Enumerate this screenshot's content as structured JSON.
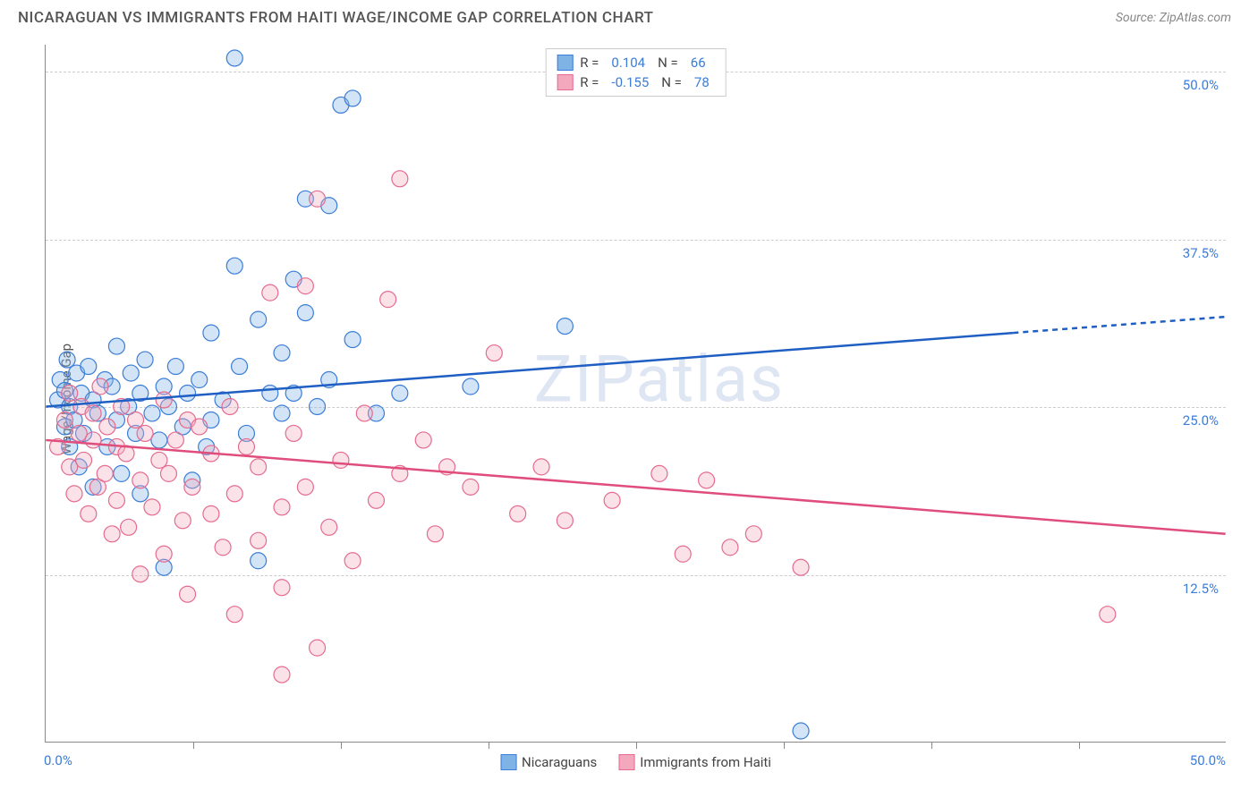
{
  "header": {
    "title": "NICARAGUAN VS IMMIGRANTS FROM HAITI WAGE/INCOME GAP CORRELATION CHART",
    "source": "Source: ZipAtlas.com"
  },
  "chart": {
    "type": "scatter",
    "ylabel": "Wage/Income Gap",
    "watermark": "ZIPatlas",
    "xlim": [
      0,
      50
    ],
    "ylim": [
      0,
      52
    ],
    "y_ticks": [
      12.5,
      25.0,
      37.5,
      50.0
    ],
    "y_tick_labels": [
      "12.5%",
      "25.0%",
      "37.5%",
      "50.0%"
    ],
    "x_axis_start_label": "0.0%",
    "x_axis_end_label": "50.0%",
    "x_tick_positions": [
      6.25,
      12.5,
      18.75,
      25.0,
      31.25,
      37.5,
      43.75
    ],
    "gridline_color": "#cccccc",
    "axis_label_color": "#3b7dd8",
    "background_color": "#ffffff",
    "point_radius": 9,
    "point_stroke_width": 1.2,
    "point_fill_opacity": 0.35,
    "trend_line_width": 2.5,
    "series": [
      {
        "name": "Nicaraguans",
        "color_fill": "#7fb2e5",
        "color_stroke": "#3b7dd8",
        "trend_color": "#1f5fc4",
        "R": "0.104",
        "N": "66",
        "trend_start": [
          0,
          25.0
        ],
        "trend_solid_end": [
          41,
          30.5
        ],
        "trend_dash_end": [
          50,
          31.7
        ],
        "points": [
          [
            0.5,
            25.5
          ],
          [
            0.6,
            27.0
          ],
          [
            0.8,
            26.2
          ],
          [
            0.8,
            23.5
          ],
          [
            0.9,
            28.5
          ],
          [
            1.0,
            25.0
          ],
          [
            1.0,
            22.0
          ],
          [
            1.2,
            24.0
          ],
          [
            1.3,
            27.5
          ],
          [
            1.4,
            20.5
          ],
          [
            1.5,
            26.0
          ],
          [
            1.6,
            23.0
          ],
          [
            1.8,
            28.0
          ],
          [
            2.0,
            25.5
          ],
          [
            2.0,
            19.0
          ],
          [
            2.2,
            24.5
          ],
          [
            2.5,
            27.0
          ],
          [
            2.6,
            22.0
          ],
          [
            2.8,
            26.5
          ],
          [
            3.0,
            24.0
          ],
          [
            3.0,
            29.5
          ],
          [
            3.2,
            20.0
          ],
          [
            3.5,
            25.0
          ],
          [
            3.6,
            27.5
          ],
          [
            3.8,
            23.0
          ],
          [
            4.0,
            26.0
          ],
          [
            4.0,
            18.5
          ],
          [
            4.2,
            28.5
          ],
          [
            4.5,
            24.5
          ],
          [
            4.8,
            22.5
          ],
          [
            5.0,
            26.5
          ],
          [
            5.0,
            13.0
          ],
          [
            5.2,
            25.0
          ],
          [
            5.5,
            28.0
          ],
          [
            5.8,
            23.5
          ],
          [
            6.0,
            26.0
          ],
          [
            6.2,
            19.5
          ],
          [
            6.5,
            27.0
          ],
          [
            7.0,
            24.0
          ],
          [
            7.0,
            30.5
          ],
          [
            7.5,
            25.5
          ],
          [
            8.0,
            35.5
          ],
          [
            8.0,
            51.0
          ],
          [
            8.2,
            28.0
          ],
          [
            8.5,
            23.0
          ],
          [
            9.0,
            31.5
          ],
          [
            9.0,
            13.5
          ],
          [
            9.5,
            26.0
          ],
          [
            10.0,
            29.0
          ],
          [
            10.0,
            24.5
          ],
          [
            10.5,
            34.5
          ],
          [
            11.0,
            40.5
          ],
          [
            11.0,
            32.0
          ],
          [
            11.5,
            25.0
          ],
          [
            12.0,
            27.0
          ],
          [
            12.0,
            40.0
          ],
          [
            12.5,
            47.5
          ],
          [
            13.0,
            48.0
          ],
          [
            13.0,
            30.0
          ],
          [
            14.0,
            24.5
          ],
          [
            15.0,
            26.0
          ],
          [
            18.0,
            26.5
          ],
          [
            22.0,
            31.0
          ],
          [
            32.0,
            0.8
          ],
          [
            10.5,
            26.0
          ],
          [
            6.8,
            22.0
          ]
        ]
      },
      {
        "name": "Immigrants from Haiti",
        "color_fill": "#f4a8bd",
        "color_stroke": "#e56b8f",
        "trend_color": "#e04d7d",
        "R": "-0.155",
        "N": "78",
        "trend_start": [
          0,
          22.5
        ],
        "trend_solid_end": [
          50,
          15.5
        ],
        "trend_dash_end": null,
        "points": [
          [
            0.5,
            22.0
          ],
          [
            0.8,
            24.0
          ],
          [
            1.0,
            20.5
          ],
          [
            1.0,
            26.0
          ],
          [
            1.2,
            18.5
          ],
          [
            1.4,
            23.0
          ],
          [
            1.5,
            25.0
          ],
          [
            1.6,
            21.0
          ],
          [
            1.8,
            17.0
          ],
          [
            2.0,
            24.5
          ],
          [
            2.0,
            22.5
          ],
          [
            2.2,
            19.0
          ],
          [
            2.3,
            26.5
          ],
          [
            2.5,
            20.0
          ],
          [
            2.6,
            23.5
          ],
          [
            2.8,
            15.5
          ],
          [
            3.0,
            22.0
          ],
          [
            3.0,
            18.0
          ],
          [
            3.2,
            25.0
          ],
          [
            3.4,
            21.5
          ],
          [
            3.5,
            16.0
          ],
          [
            3.8,
            24.0
          ],
          [
            4.0,
            19.5
          ],
          [
            4.0,
            12.5
          ],
          [
            4.2,
            23.0
          ],
          [
            4.5,
            17.5
          ],
          [
            4.8,
            21.0
          ],
          [
            5.0,
            25.5
          ],
          [
            5.0,
            14.0
          ],
          [
            5.2,
            20.0
          ],
          [
            5.5,
            22.5
          ],
          [
            5.8,
            16.5
          ],
          [
            6.0,
            24.0
          ],
          [
            6.0,
            11.0
          ],
          [
            6.2,
            19.0
          ],
          [
            6.5,
            23.5
          ],
          [
            7.0,
            17.0
          ],
          [
            7.0,
            21.5
          ],
          [
            7.5,
            14.5
          ],
          [
            7.8,
            25.0
          ],
          [
            8.0,
            18.5
          ],
          [
            8.0,
            9.5
          ],
          [
            8.5,
            22.0
          ],
          [
            9.0,
            15.0
          ],
          [
            9.0,
            20.5
          ],
          [
            9.5,
            33.5
          ],
          [
            10.0,
            17.5
          ],
          [
            10.0,
            11.5
          ],
          [
            10.5,
            23.0
          ],
          [
            11.0,
            34.0
          ],
          [
            11.0,
            19.0
          ],
          [
            11.5,
            7.0
          ],
          [
            11.5,
            40.5
          ],
          [
            12.0,
            16.0
          ],
          [
            12.5,
            21.0
          ],
          [
            13.0,
            13.5
          ],
          [
            13.5,
            24.5
          ],
          [
            14.0,
            18.0
          ],
          [
            14.5,
            33.0
          ],
          [
            15.0,
            20.0
          ],
          [
            15.0,
            42.0
          ],
          [
            16.0,
            22.5
          ],
          [
            16.5,
            15.5
          ],
          [
            17.0,
            20.5
          ],
          [
            18.0,
            19.0
          ],
          [
            19.0,
            29.0
          ],
          [
            20.0,
            17.0
          ],
          [
            21.0,
            20.5
          ],
          [
            22.0,
            16.5
          ],
          [
            24.0,
            18.0
          ],
          [
            26.0,
            20.0
          ],
          [
            27.0,
            14.0
          ],
          [
            28.0,
            19.5
          ],
          [
            29.0,
            14.5
          ],
          [
            30.0,
            15.5
          ],
          [
            32.0,
            13.0
          ],
          [
            45.0,
            9.5
          ],
          [
            10.0,
            5.0
          ]
        ]
      }
    ],
    "legend_top": {
      "R_label": "R =",
      "N_label": "N ="
    },
    "legend_bottom": {
      "series": [
        "Nicaraguans",
        "Immigrants from Haiti"
      ]
    }
  }
}
